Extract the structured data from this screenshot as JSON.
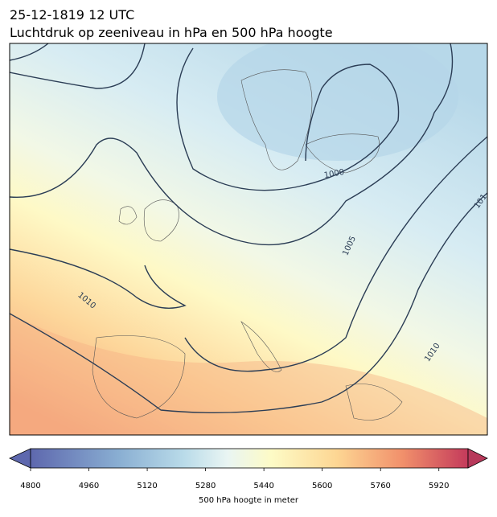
{
  "header": {
    "title": "25-12-1819 12 UTC",
    "subtitle": "Luchtdruk op zeeniveau in hPa en 500 hPa hoogte"
  },
  "contour_labels": [
    "1000",
    "1005",
    "1010",
    "1010",
    "101"
  ],
  "colorbar": {
    "lim": [
      4800,
      6000
    ],
    "ticks": [
      4800,
      4960,
      5120,
      5280,
      5440,
      5600,
      5760,
      5920
    ],
    "label": "500 hPa hoogte in meter"
  }
}
